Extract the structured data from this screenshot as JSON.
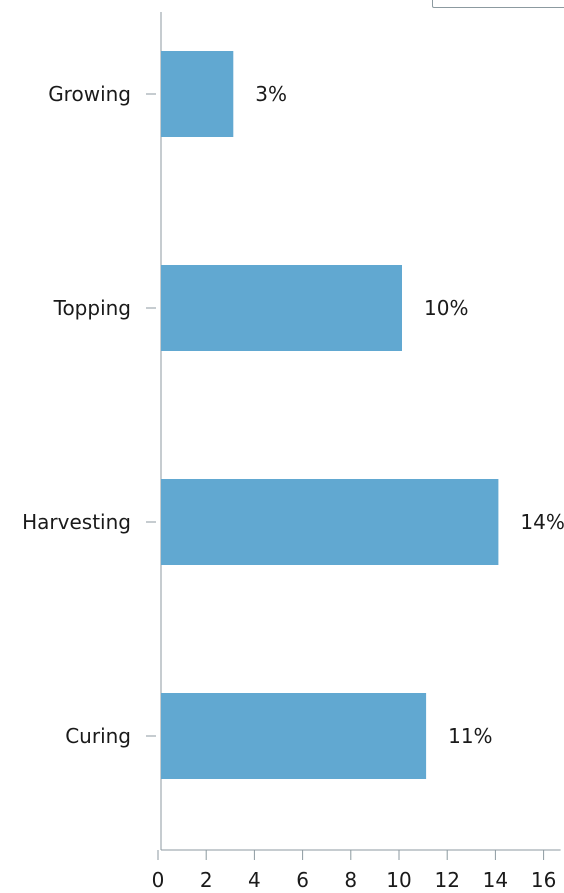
{
  "chart_data": {
    "type": "bar",
    "orientation": "horizontal",
    "categories": [
      "Growing",
      "Topping",
      "Harvesting",
      "Curing"
    ],
    "values": [
      3,
      10,
      14,
      11
    ],
    "data_labels": [
      "3%",
      "10%",
      "14%",
      "11%"
    ],
    "x_ticks": [
      "0",
      "2",
      "4",
      "6",
      "8",
      "10",
      "12",
      "14",
      "16"
    ],
    "xlim": [
      0,
      16
    ],
    "title": "",
    "xlabel": "",
    "ylabel": "",
    "grid": false,
    "bar_color": "#61a8d1",
    "axis_color": "#8c9aa0"
  }
}
